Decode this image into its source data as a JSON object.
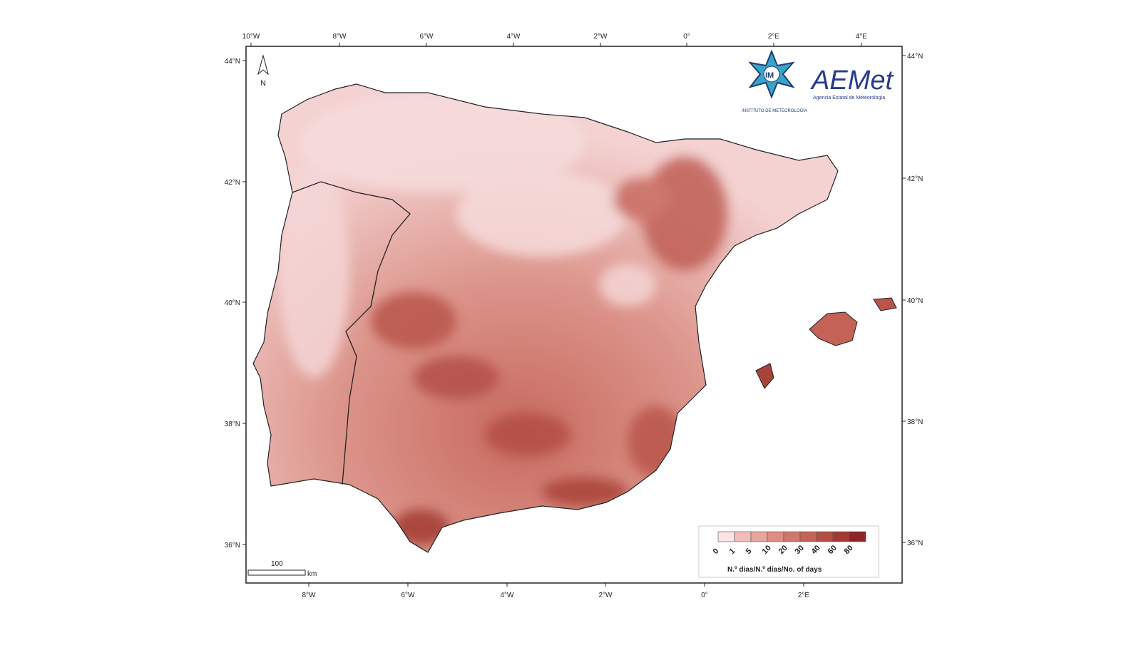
{
  "map": {
    "top_ticks": [
      "10°W",
      "8°W",
      "6°W",
      "4°W",
      "2°W",
      "0°",
      "2°E",
      "4°E"
    ],
    "bottom_ticks": [
      "8°W",
      "6°W",
      "4°W",
      "2°W",
      "0°",
      "2°E"
    ],
    "left_ticks": [
      "44°N",
      "42°N",
      "40°N",
      "38°N",
      "36°N"
    ],
    "right_ticks": [
      "44°N",
      "42°N",
      "40°N",
      "38°N",
      "36°N"
    ],
    "north_label": "N",
    "scale_value": "100",
    "scale_unit": "km"
  },
  "logos": {
    "im_text": "IM",
    "im_caption": "INSTITUTO DE METEOROLOGÍA",
    "aemet_text": "AEMet",
    "aemet_caption": "Agencia Estatal de Meteorología"
  },
  "legend": {
    "title": "N.º dias/N.º días/No. of days",
    "labels": [
      "0",
      "1",
      "5",
      "10",
      "20",
      "30",
      "40",
      "60",
      "80"
    ],
    "colors": [
      "#fbe3e6",
      "#f2bdb8",
      "#e9a49c",
      "#dd8d83",
      "#d0776c",
      "#c36358",
      "#b34e44",
      "#a23a33",
      "#8f2424"
    ]
  }
}
